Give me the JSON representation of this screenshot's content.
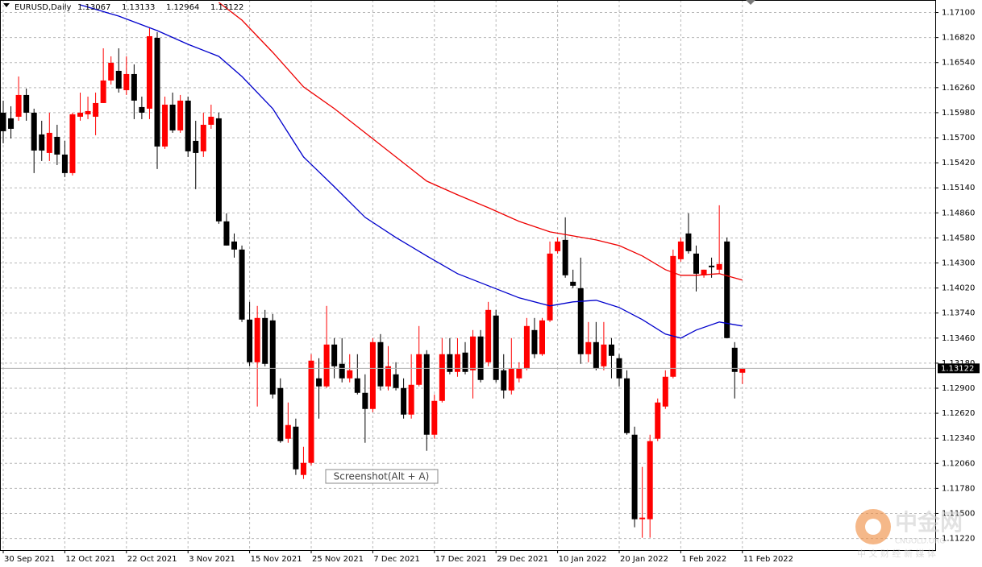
{
  "chart_data": {
    "type": "candlestick",
    "title": "EURUSD,Daily",
    "header_values": [
      1.13067,
      1.13133,
      1.12964,
      1.13122
    ],
    "last_price": 1.13122,
    "up_color": "#ff0000",
    "down_color": "#000000",
    "grid": true,
    "ylim": [
      1.1109,
      1.1724
    ],
    "yticks": [
      {
        "value": 1.171,
        "label": "1.17100"
      },
      {
        "value": 1.1682,
        "label": "1.16820"
      },
      {
        "value": 1.1654,
        "label": "1.16540"
      },
      {
        "value": 1.1626,
        "label": "1.16260"
      },
      {
        "value": 1.1598,
        "label": "1.15980"
      },
      {
        "value": 1.157,
        "label": "1.15700"
      },
      {
        "value": 1.1542,
        "label": "1.15420"
      },
      {
        "value": 1.1514,
        "label": "1.15140"
      },
      {
        "value": 1.1486,
        "label": "1.14860"
      },
      {
        "value": 1.1458,
        "label": "1.14580"
      },
      {
        "value": 1.143,
        "label": "1.14300"
      },
      {
        "value": 1.1402,
        "label": "1.14020"
      },
      {
        "value": 1.1374,
        "label": "1.13740"
      },
      {
        "value": 1.1346,
        "label": "1.13460"
      },
      {
        "value": 1.1318,
        "label": "1.13180"
      },
      {
        "value": 1.129,
        "label": "1.12900"
      },
      {
        "value": 1.1262,
        "label": "1.12620"
      },
      {
        "value": 1.1234,
        "label": "1.12340"
      },
      {
        "value": 1.1206,
        "label": "1.12060"
      },
      {
        "value": 1.1178,
        "label": "1.11780"
      },
      {
        "value": 1.115,
        "label": "1.11500"
      },
      {
        "value": 1.1122,
        "label": "1.11220"
      }
    ],
    "categories": [
      "30 Sep 2021",
      null,
      null,
      null,
      null,
      null,
      null,
      null,
      "12 Oct 2021",
      null,
      null,
      null,
      null,
      null,
      null,
      null,
      "22 Oct 2021",
      null,
      null,
      null,
      null,
      null,
      null,
      null,
      "3 Nov 2021",
      null,
      null,
      null,
      null,
      null,
      null,
      null,
      "15 Nov 2021",
      null,
      null,
      null,
      null,
      null,
      null,
      null,
      "25 Nov 2021",
      null,
      null,
      null,
      null,
      null,
      null,
      null,
      "7 Dec 2021",
      null,
      null,
      null,
      null,
      null,
      null,
      null,
      "17 Dec 2021",
      null,
      null,
      null,
      null,
      null,
      null,
      null,
      "29 Dec 2021",
      null,
      null,
      null,
      null,
      null,
      null,
      null,
      "10 Jan 2022",
      null,
      null,
      null,
      null,
      null,
      null,
      null,
      "20 Jan 2022",
      null,
      null,
      null,
      null,
      null,
      null,
      null,
      "1 Feb 2022",
      null,
      null,
      null,
      null,
      null,
      null,
      null,
      "11 Feb 2022"
    ],
    "open": [
      1.1598,
      1.15917,
      1.15935,
      1.16178,
      1.1598,
      1.15737,
      1.1553,
      1.1571,
      1.15512,
      1.15305,
      1.15935,
      1.15962,
      1.15935,
      1.16088,
      1.1634,
      1.16448,
      1.16232,
      1.16412,
      1.16043,
      1.16025,
      1.16817,
      1.15602,
      1.1607,
      1.15782,
      1.16115,
      1.15665,
      1.15548,
      1.15845,
      1.15917,
      1.14765,
      1.1454,
      1.1445,
      1.13667,
      1.1319,
      1.13685,
      1.13658,
      1.12902,
      1.12335,
      1.1247,
      1.1193,
      1.12065,
      1.1301,
      1.1292,
      1.13388,
      1.13172,
      1.1301,
      1.1301,
      1.12848,
      1.12668,
      1.13415,
      1.1292,
      1.13055,
      1.12902,
      1.12605,
      1.12938,
      1.1328,
      1.1238,
      1.12758,
      1.1328,
      1.13082,
      1.13298,
      1.131,
      1.13478,
      1.1319,
      1.13712,
      1.131,
      1.12875,
      1.1301,
      1.13118,
      1.1355,
      1.1328,
      1.13658,
      1.14432,
      1.14558,
      1.1409,
      1.14018,
      1.1328,
      1.13415,
      1.13145,
      1.13388,
      1.13235,
      1.1301,
      1.1238,
      1.11435,
      1.11435,
      1.12335,
      1.12695,
      1.13028,
      1.14342,
      1.1463,
      1.14405,
      1.14162,
      1.1427,
      1.14225,
      1.1454,
      1.13352,
      1.13073
    ],
    "high": [
      1.16115,
      1.16052,
      1.16385,
      1.1625,
      1.16025,
      1.1589,
      1.1598,
      1.15845,
      1.15665,
      1.1598,
      1.16205,
      1.1616,
      1.16205,
      1.167,
      1.1661,
      1.167,
      1.1661,
      1.1652,
      1.1616,
      1.16925,
      1.1688,
      1.1616,
      1.16205,
      1.16178,
      1.1616,
      1.1589,
      1.1598,
      1.1607,
      1.1598,
      1.14855,
      1.1463,
      1.14495,
      1.13865,
      1.1382,
      1.13775,
      1.1373,
      1.1301,
      1.1274,
      1.1256,
      1.12245,
      1.1328,
      1.13235,
      1.1382,
      1.1346,
      1.1346,
      1.1328,
      1.1328,
      1.13055,
      1.1346,
      1.13505,
      1.1337,
      1.1319,
      1.1301,
      1.1328,
      1.13595,
      1.13325,
      1.1283,
      1.1346,
      1.1346,
      1.1346,
      1.13415,
      1.1355,
      1.1355,
      1.13865,
      1.13775,
      1.1328,
      1.1346,
      1.1319,
      1.13685,
      1.13685,
      1.13685,
      1.1454,
      1.14585,
      1.1481,
      1.14225,
      1.1436,
      1.1364,
      1.1364,
      1.1364,
      1.1346,
      1.1328,
      1.131,
      1.1247,
      1.1202,
      1.1238,
      1.12785,
      1.131,
      1.1445,
      1.14585,
      1.14855,
      1.14495,
      1.14225,
      1.1436,
      1.14945,
      1.14585,
      1.13415,
      1.13118
    ],
    "low": [
      1.15638,
      1.15692,
      1.1589,
      1.1589,
      1.15305,
      1.1544,
      1.1544,
      1.15395,
      1.1526,
      1.15278,
      1.1589,
      1.15908,
      1.15728,
      1.16088,
      1.16295,
      1.16205,
      1.16178,
      1.15908,
      1.15908,
      1.15908,
      1.1535,
      1.15575,
      1.15755,
      1.15755,
      1.15485,
      1.15125,
      1.15485,
      1.158,
      1.14738,
      1.14495,
      1.1436,
      1.1364,
      1.13145,
      1.12695,
      1.13145,
      1.12785,
      1.1229,
      1.1229,
      1.1193,
      1.11885,
      1.12038,
      1.1256,
      1.12902,
      1.1301,
      1.12965,
      1.12965,
      1.1283,
      1.1229,
      1.12632,
      1.12875,
      1.12875,
      1.12875,
      1.1256,
      1.1256,
      1.1292,
      1.122,
      1.12335,
      1.1274,
      1.13055,
      1.13028,
      1.13055,
      1.12785,
      1.12965,
      1.13145,
      1.12965,
      1.12785,
      1.1283,
      1.12965,
      1.131,
      1.13235,
      1.13262,
      1.1364,
      1.14405,
      1.14135,
      1.14018,
      1.13172,
      1.1319,
      1.131,
      1.131,
      1.1301,
      1.1292,
      1.1238,
      1.11345,
      1.11228,
      1.11228,
      1.12308,
      1.12668,
      1.1301,
      1.14315,
      1.14405,
      1.13982,
      1.14135,
      1.14135,
      1.1418,
      1.1346,
      1.12785,
      1.12947
    ],
    "close": [
      1.15773,
      1.158,
      1.16178,
      1.1598,
      1.15557,
      1.15557,
      1.15755,
      1.15512,
      1.15305,
      1.15962,
      1.1598,
      1.15998,
      1.16088,
      1.1634,
      1.16538,
      1.1625,
      1.16412,
      1.16115,
      1.1598,
      1.16835,
      1.15602,
      1.1607,
      1.15782,
      1.16115,
      1.15548,
      1.1553,
      1.15845,
      1.15935,
      1.14765,
      1.14495,
      1.1445,
      1.13667,
      1.1319,
      1.13685,
      1.13172,
      1.1283,
      1.12308,
      1.12488,
      1.11993,
      1.12065,
      1.13208,
      1.1292,
      1.13388,
      1.13145,
      1.1301,
      1.131,
      1.12848,
      1.12668,
      1.13415,
      1.1292,
      1.13145,
      1.12902,
      1.12605,
      1.12938,
      1.1328,
      1.1238,
      1.12758,
      1.1328,
      1.13082,
      1.1328,
      1.13082,
      1.13478,
      1.12992,
      1.13775,
      1.12992,
      1.12875,
      1.13118,
      1.13118,
      1.13595,
      1.1328,
      1.13658,
      1.14405,
      1.1454,
      1.14162,
      1.14045,
      1.1328,
      1.13415,
      1.13118,
      1.13388,
      1.13262,
      1.1301,
      1.12398,
      1.11435,
      1.11453,
      1.12308,
      1.1274,
      1.13028,
      1.14378,
      1.1454,
      1.14432,
      1.1418,
      1.14225,
      1.14252,
      1.14288,
      1.1346,
      1.13082,
      1.13118
    ],
    "overlays": [
      {
        "color": "#0000cc",
        "x": [
          10,
          15,
          20,
          24,
          28,
          31,
          35,
          39,
          43,
          47,
          51,
          55,
          59,
          63,
          67,
          71,
          74,
          77,
          80,
          83,
          86,
          88,
          90,
          93,
          96
        ],
        "values": [
          1.17186,
          1.1706,
          1.16898,
          1.16745,
          1.1661,
          1.16385,
          1.16025,
          1.15485,
          1.15152,
          1.1481,
          1.14585,
          1.14378,
          1.1418,
          1.14045,
          1.1391,
          1.1382,
          1.13865,
          1.13883,
          1.13802,
          1.13667,
          1.13505,
          1.1346,
          1.1355,
          1.1364,
          1.13595
        ]
      },
      {
        "color": "#ee0000",
        "x": [
          28,
          31,
          35,
          39,
          43,
          47,
          51,
          55,
          59,
          63,
          67,
          71,
          74,
          77,
          80,
          83,
          86,
          88,
          90,
          93,
          96
        ],
        "values": [
          1.17213,
          1.17015,
          1.16655,
          1.16268,
          1.16025,
          1.15755,
          1.15485,
          1.15215,
          1.15062,
          1.14918,
          1.14765,
          1.14648,
          1.14603,
          1.14558,
          1.14495,
          1.14378,
          1.14225,
          1.14162,
          1.14162,
          1.1418,
          1.14108
        ]
      }
    ],
    "tooltip": "Screenshot(Alt + A)",
    "watermark": {
      "name": "中金网",
      "domain": "CNGOLD.ORG",
      "slogan": "中 文 财 经 新 媒 体"
    }
  }
}
